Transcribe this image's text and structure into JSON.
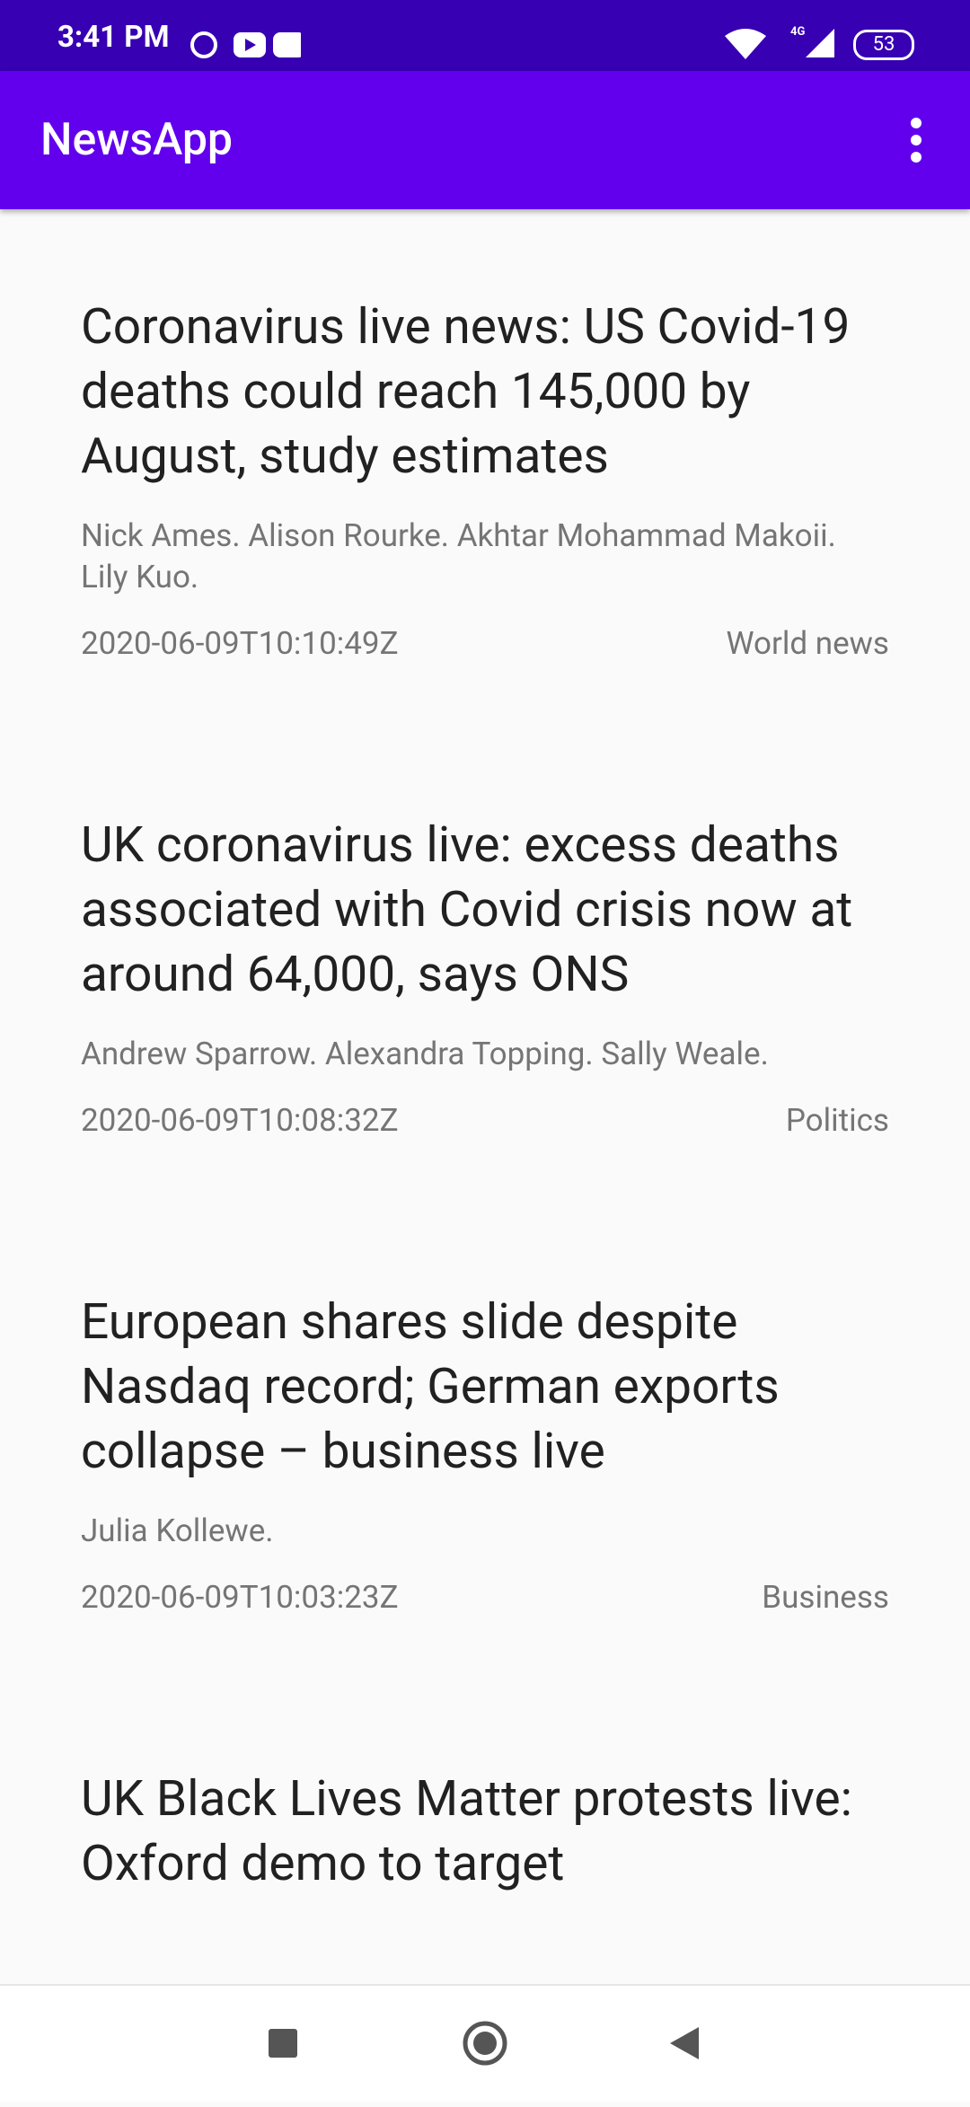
{
  "status_bar": {
    "time": "3:41 PM",
    "network": "4G",
    "battery": "53"
  },
  "app_bar": {
    "title": "NewsApp"
  },
  "articles": [
    {
      "title": "Coronavirus live news: US Covid-19 deaths could reach 145,000 by August, study estimates",
      "authors": "Nick Ames. Alison Rourke. Akhtar Mohammad Makoii. Lily Kuo.",
      "date": "2020-06-09T10:10:49Z",
      "section": "World news"
    },
    {
      "title": "UK coronavirus live: excess deaths associated with Covid crisis now at around 64,000, says ONS",
      "authors": "Andrew Sparrow. Alexandra Topping. Sally Weale.",
      "date": "2020-06-09T10:08:32Z",
      "section": "Politics"
    },
    {
      "title": "European shares slide despite Nasdaq record; German exports collapse  – business live",
      "authors": "Julia Kollewe.",
      "date": "2020-06-09T10:03:23Z",
      "section": "Business"
    },
    {
      "title": "UK Black Lives Matter protests live: Oxford demo to target",
      "authors": "",
      "date": "",
      "section": ""
    }
  ]
}
